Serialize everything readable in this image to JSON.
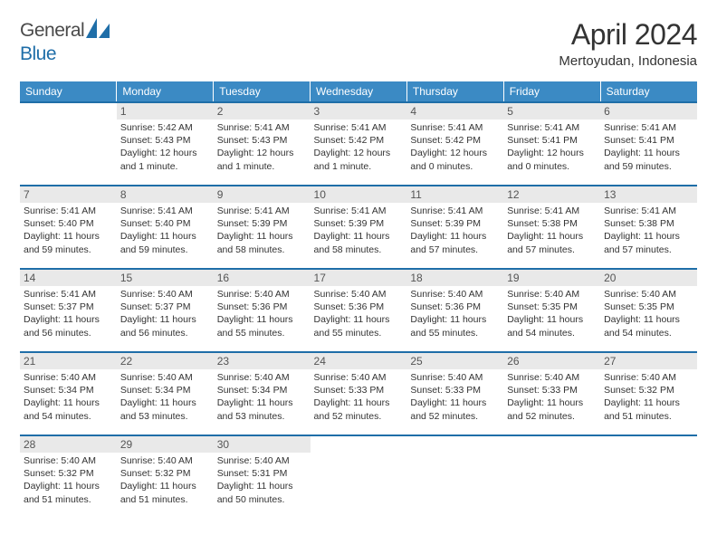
{
  "brand": {
    "part1": "General",
    "part2": "Blue"
  },
  "colors": {
    "header_bg": "#3b8ac4",
    "row_border": "#1f6ea8",
    "daynum_bg": "#e9e9e9",
    "logo_blue": "#1f6ea8"
  },
  "title": {
    "month": "April 2024",
    "location": "Mertoyudan, Indonesia"
  },
  "weekdays": [
    "Sunday",
    "Monday",
    "Tuesday",
    "Wednesday",
    "Thursday",
    "Friday",
    "Saturday"
  ],
  "weeks": [
    [
      null,
      {
        "n": "1",
        "sr": "5:42 AM",
        "ss": "5:43 PM",
        "dl": "12 hours and 1 minute."
      },
      {
        "n": "2",
        "sr": "5:41 AM",
        "ss": "5:43 PM",
        "dl": "12 hours and 1 minute."
      },
      {
        "n": "3",
        "sr": "5:41 AM",
        "ss": "5:42 PM",
        "dl": "12 hours and 1 minute."
      },
      {
        "n": "4",
        "sr": "5:41 AM",
        "ss": "5:42 PM",
        "dl": "12 hours and 0 minutes."
      },
      {
        "n": "5",
        "sr": "5:41 AM",
        "ss": "5:41 PM",
        "dl": "12 hours and 0 minutes."
      },
      {
        "n": "6",
        "sr": "5:41 AM",
        "ss": "5:41 PM",
        "dl": "11 hours and 59 minutes."
      }
    ],
    [
      {
        "n": "7",
        "sr": "5:41 AM",
        "ss": "5:40 PM",
        "dl": "11 hours and 59 minutes."
      },
      {
        "n": "8",
        "sr": "5:41 AM",
        "ss": "5:40 PM",
        "dl": "11 hours and 59 minutes."
      },
      {
        "n": "9",
        "sr": "5:41 AM",
        "ss": "5:39 PM",
        "dl": "11 hours and 58 minutes."
      },
      {
        "n": "10",
        "sr": "5:41 AM",
        "ss": "5:39 PM",
        "dl": "11 hours and 58 minutes."
      },
      {
        "n": "11",
        "sr": "5:41 AM",
        "ss": "5:39 PM",
        "dl": "11 hours and 57 minutes."
      },
      {
        "n": "12",
        "sr": "5:41 AM",
        "ss": "5:38 PM",
        "dl": "11 hours and 57 minutes."
      },
      {
        "n": "13",
        "sr": "5:41 AM",
        "ss": "5:38 PM",
        "dl": "11 hours and 57 minutes."
      }
    ],
    [
      {
        "n": "14",
        "sr": "5:41 AM",
        "ss": "5:37 PM",
        "dl": "11 hours and 56 minutes."
      },
      {
        "n": "15",
        "sr": "5:40 AM",
        "ss": "5:37 PM",
        "dl": "11 hours and 56 minutes."
      },
      {
        "n": "16",
        "sr": "5:40 AM",
        "ss": "5:36 PM",
        "dl": "11 hours and 55 minutes."
      },
      {
        "n": "17",
        "sr": "5:40 AM",
        "ss": "5:36 PM",
        "dl": "11 hours and 55 minutes."
      },
      {
        "n": "18",
        "sr": "5:40 AM",
        "ss": "5:36 PM",
        "dl": "11 hours and 55 minutes."
      },
      {
        "n": "19",
        "sr": "5:40 AM",
        "ss": "5:35 PM",
        "dl": "11 hours and 54 minutes."
      },
      {
        "n": "20",
        "sr": "5:40 AM",
        "ss": "5:35 PM",
        "dl": "11 hours and 54 minutes."
      }
    ],
    [
      {
        "n": "21",
        "sr": "5:40 AM",
        "ss": "5:34 PM",
        "dl": "11 hours and 54 minutes."
      },
      {
        "n": "22",
        "sr": "5:40 AM",
        "ss": "5:34 PM",
        "dl": "11 hours and 53 minutes."
      },
      {
        "n": "23",
        "sr": "5:40 AM",
        "ss": "5:34 PM",
        "dl": "11 hours and 53 minutes."
      },
      {
        "n": "24",
        "sr": "5:40 AM",
        "ss": "5:33 PM",
        "dl": "11 hours and 52 minutes."
      },
      {
        "n": "25",
        "sr": "5:40 AM",
        "ss": "5:33 PM",
        "dl": "11 hours and 52 minutes."
      },
      {
        "n": "26",
        "sr": "5:40 AM",
        "ss": "5:33 PM",
        "dl": "11 hours and 52 minutes."
      },
      {
        "n": "27",
        "sr": "5:40 AM",
        "ss": "5:32 PM",
        "dl": "11 hours and 51 minutes."
      }
    ],
    [
      {
        "n": "28",
        "sr": "5:40 AM",
        "ss": "5:32 PM",
        "dl": "11 hours and 51 minutes."
      },
      {
        "n": "29",
        "sr": "5:40 AM",
        "ss": "5:32 PM",
        "dl": "11 hours and 51 minutes."
      },
      {
        "n": "30",
        "sr": "5:40 AM",
        "ss": "5:31 PM",
        "dl": "11 hours and 50 minutes."
      },
      null,
      null,
      null,
      null
    ]
  ],
  "labels": {
    "sunrise": "Sunrise:",
    "sunset": "Sunset:",
    "daylight": "Daylight:"
  }
}
